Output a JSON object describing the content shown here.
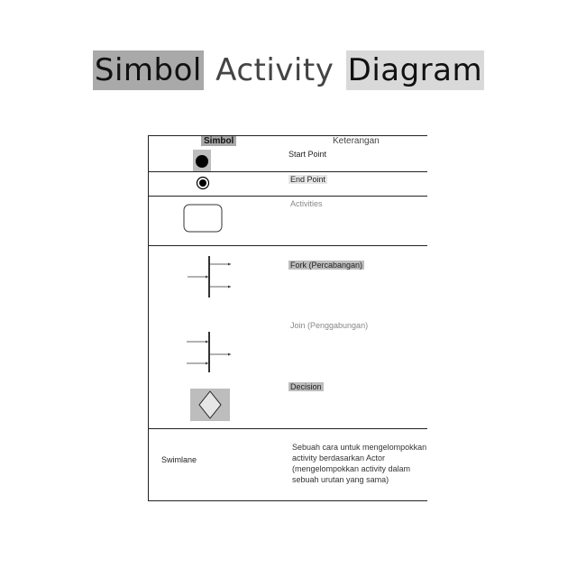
{
  "title": {
    "word1": "Simbol",
    "word2": "Activity",
    "word3": "Diagram"
  },
  "table": {
    "header_symbol": "Simbol",
    "header_description": "Keterangan",
    "rows": [
      {
        "label": "Start Point"
      },
      {
        "label": "End Point"
      },
      {
        "label": "Activities"
      },
      {
        "label": "Fork (Percabangan)"
      },
      {
        "label": "Join (Penggabungan)"
      },
      {
        "label": "Decision"
      },
      {
        "symbol_text": "Swimlane",
        "description": "Sebuah cara untuk mengelompokkan activity berdasarkan Actor (mengelompokkan activity dalam sebuah urutan yang sama)"
      }
    ]
  }
}
